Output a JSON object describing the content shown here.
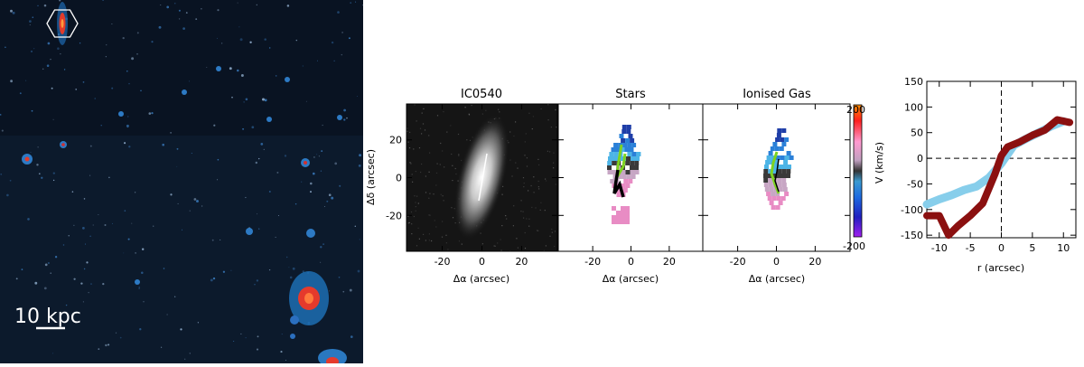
{
  "scale_bar": {
    "label": "10 kpc"
  },
  "maps": {
    "panels": [
      {
        "title": "IC0540",
        "xlabel": "Δα (arcsec)"
      },
      {
        "title": "Stars",
        "xlabel": "Δα  (arcsec)"
      },
      {
        "title": "Ionised Gas",
        "xlabel": "Δα  (arcsec)"
      }
    ],
    "ylabel": "Δδ (arcsec)",
    "x_ticks": [
      -20,
      0,
      20
    ],
    "y_ticks": [
      -20,
      0,
      20
    ],
    "xlim": [
      -38,
      38
    ],
    "ylim": [
      -39,
      39
    ],
    "colorbar": {
      "max_label": "200",
      "min_label": "-200",
      "label": "V (km/s)"
    }
  },
  "chart_data": [
    {
      "type": "line",
      "title": "",
      "xlabel": "r (arcsec)",
      "ylabel": "",
      "xlim": [
        -12,
        12
      ],
      "ylim": [
        -155,
        150
      ],
      "x_ticks": [
        -10,
        -5,
        0,
        5,
        10
      ],
      "y_ticks": [
        -150,
        -100,
        -50,
        0,
        50,
        100,
        150
      ],
      "reference_lines": {
        "x": 0,
        "y": 0,
        "style": "dashed"
      },
      "series": [
        {
          "color": "#87ceeb",
          "x": [
            -12,
            -10,
            -8,
            -6,
            -4,
            -2,
            0,
            2,
            4,
            6,
            8,
            10
          ],
          "y": [
            -90,
            -80,
            -72,
            -62,
            -55,
            -38,
            -10,
            25,
            38,
            50,
            62,
            72
          ]
        },
        {
          "color": "#8b1010",
          "x": [
            -12,
            -10,
            -8.5,
            -7,
            -5,
            -3,
            -1,
            0,
            1,
            3,
            5,
            7,
            9,
            11
          ],
          "y": [
            -112,
            -112,
            -150,
            -132,
            -112,
            -88,
            -30,
            5,
            22,
            32,
            45,
            55,
            75,
            70
          ]
        }
      ]
    }
  ]
}
